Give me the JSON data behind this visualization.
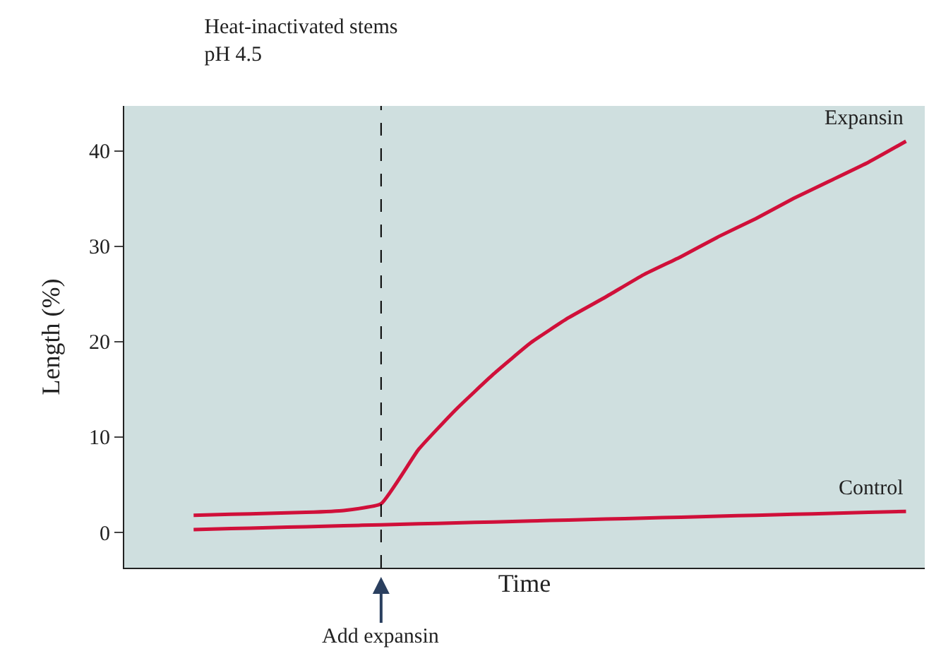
{
  "chart_data": {
    "type": "line",
    "title": "Heat-inactivated stems",
    "subtitle": "pH 4.5",
    "xlabel": "Time",
    "ylabel": "Length (%)",
    "categories": [
      null,
      null,
      null,
      null,
      null,
      null,
      null,
      null,
      null,
      null,
      null,
      null,
      null,
      null,
      null,
      null,
      null,
      null,
      null,
      null
    ],
    "series": [
      {
        "name": "Expansin",
        "color": "#d0103a",
        "values": [
          1.8,
          1.9,
          2.0,
          2.1,
          2.3,
          3.0,
          8.7,
          12.9,
          16.6,
          19.9,
          22.5,
          24.7,
          27.0,
          28.9,
          31.0,
          32.9,
          35.0,
          36.9,
          38.8,
          41.0
        ]
      },
      {
        "name": "Control",
        "color": "#d0103a",
        "values": [
          0.3,
          0.4,
          0.5,
          0.6,
          0.7,
          0.8,
          0.9,
          1.0,
          1.1,
          1.2,
          1.3,
          1.4,
          1.5,
          1.6,
          1.7,
          1.8,
          1.9,
          2.0,
          2.1,
          2.2
        ]
      }
    ],
    "ylim": [
      -3.7,
      44.7
    ],
    "yticks": [
      0,
      10,
      20,
      30,
      40
    ],
    "grid": false,
    "legend": false,
    "marker": "none",
    "line_style": "solid",
    "tick_labels": "y",
    "annotations": [
      "Add expansin"
    ]
  }
}
